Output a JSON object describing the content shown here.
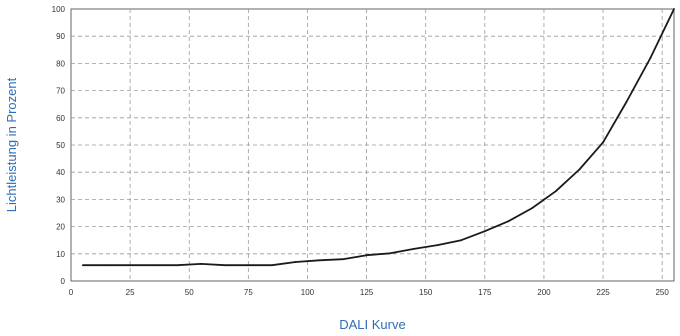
{
  "chart_data": {
    "type": "line",
    "title": "",
    "xlabel": "DALI Kurve",
    "ylabel": "Lichtleistung in Prozent",
    "xlim": [
      0,
      255
    ],
    "ylim": [
      0,
      100
    ],
    "x_ticks": [
      0,
      25,
      50,
      75,
      100,
      125,
      150,
      175,
      200,
      225,
      250
    ],
    "y_ticks": [
      0,
      10,
      20,
      30,
      40,
      50,
      60,
      70,
      80,
      90,
      100
    ],
    "grid": true,
    "legend": "none",
    "colors": {
      "line": "#1a1a1a",
      "grid": "#9a9a9a",
      "axis_title": "#2f6db5"
    },
    "series": [
      {
        "x": [
          5,
          15,
          25,
          35,
          45,
          55,
          65,
          75,
          85,
          95,
          105,
          115,
          125,
          135,
          145,
          155,
          165,
          175,
          185,
          195,
          205,
          215,
          225,
          235,
          245,
          255
        ],
        "y": [
          5.8,
          5.8,
          5.8,
          5.8,
          5.8,
          6.3,
          5.8,
          5.8,
          5.8,
          7.0,
          7.6,
          8.0,
          9.5,
          10.2,
          11.8,
          13.2,
          15.0,
          18.3,
          22.0,
          26.8,
          33.0,
          41.0,
          51.0,
          66.0,
          82.0,
          100.0
        ]
      }
    ]
  }
}
